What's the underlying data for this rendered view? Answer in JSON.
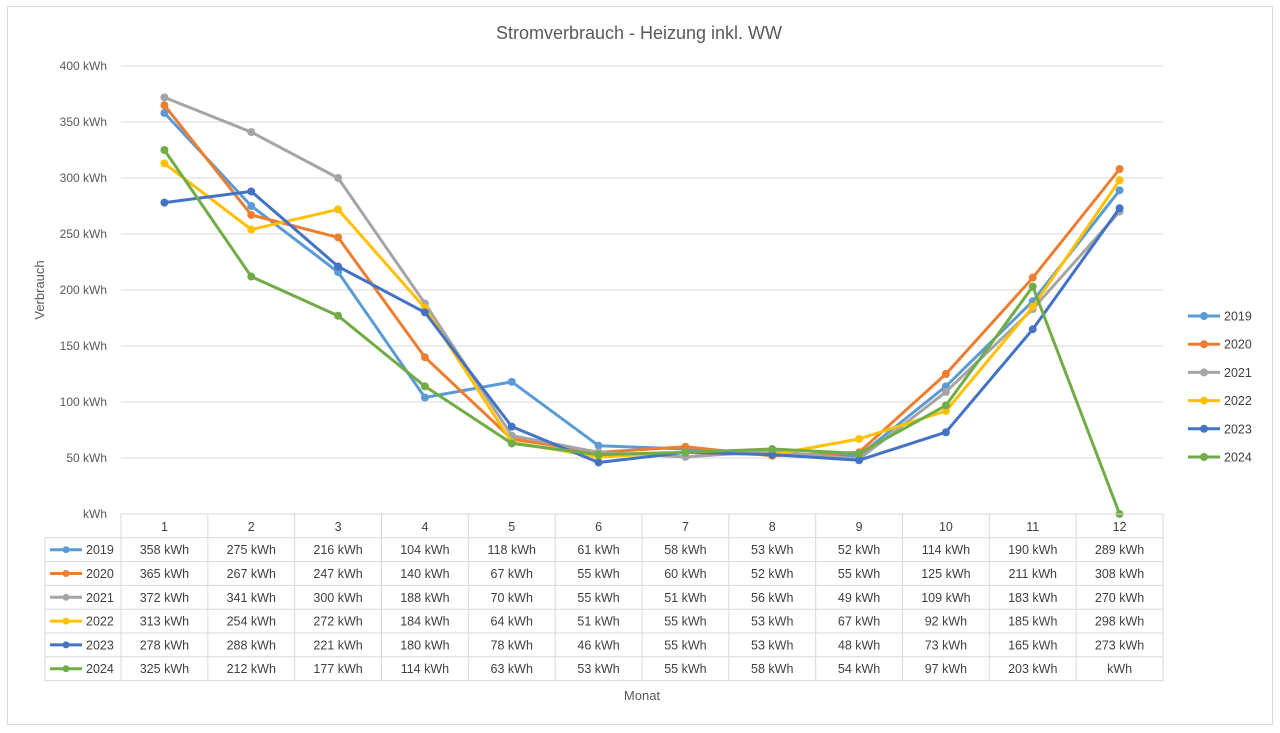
{
  "chart_data": {
    "type": "line",
    "title": "Stromverbrauch - Heizung inkl. WW",
    "xlabel": "Monat",
    "ylabel": "Verbrauch",
    "categories": [
      "1",
      "2",
      "3",
      "4",
      "5",
      "6",
      "7",
      "8",
      "9",
      "10",
      "11",
      "12"
    ],
    "ylim": [
      0,
      400
    ],
    "y_ticks": [
      {
        "value": 0,
        "label": "kWh"
      },
      {
        "value": 50,
        "label": "50 kWh"
      },
      {
        "value": 100,
        "label": "100 kWh"
      },
      {
        "value": 150,
        "label": "150 kWh"
      },
      {
        "value": 200,
        "label": "200 kWh"
      },
      {
        "value": 250,
        "label": "250 kWh"
      },
      {
        "value": 300,
        "label": "300 kWh"
      },
      {
        "value": 350,
        "label": "350 kWh"
      },
      {
        "value": 400,
        "label": "400 kWh"
      }
    ],
    "grid": true,
    "legend_position": "right",
    "data_table": true,
    "series": [
      {
        "name": "2019",
        "color": "#5b9bd5",
        "values": [
          358,
          275,
          216,
          104,
          118,
          61,
          58,
          53,
          52,
          114,
          190,
          289
        ],
        "labels": [
          "358 kWh",
          "275 kWh",
          "216 kWh",
          "104 kWh",
          "118 kWh",
          "61 kWh",
          "58 kWh",
          "53 kWh",
          "52 kWh",
          "114 kWh",
          "190 kWh",
          "289 kWh"
        ]
      },
      {
        "name": "2020",
        "color": "#ed7d31",
        "values": [
          365,
          267,
          247,
          140,
          67,
          55,
          60,
          52,
          55,
          125,
          211,
          308
        ],
        "labels": [
          "365 kWh",
          "267 kWh",
          "247 kWh",
          "140 kWh",
          "67 kWh",
          "55 kWh",
          "60 kWh",
          "52 kWh",
          "55 kWh",
          "125 kWh",
          "211 kWh",
          "308 kWh"
        ]
      },
      {
        "name": "2021",
        "color": "#a5a5a5",
        "values": [
          372,
          341,
          300,
          188,
          70,
          55,
          51,
          56,
          49,
          109,
          183,
          270
        ],
        "labels": [
          "372 kWh",
          "341 kWh",
          "300 kWh",
          "188 kWh",
          "70 kWh",
          "55 kWh",
          "51 kWh",
          "56 kWh",
          "49 kWh",
          "109 kWh",
          "183 kWh",
          "270 kWh"
        ]
      },
      {
        "name": "2022",
        "color": "#ffc000",
        "values": [
          313,
          254,
          272,
          184,
          64,
          51,
          55,
          53,
          67,
          92,
          185,
          298
        ],
        "labels": [
          "313 kWh",
          "254 kWh",
          "272 kWh",
          "184 kWh",
          "64 kWh",
          "51 kWh",
          "55 kWh",
          "53 kWh",
          "67 kWh",
          "92 kWh",
          "185 kWh",
          "298 kWh"
        ]
      },
      {
        "name": "2023",
        "color": "#4472c4",
        "values": [
          278,
          288,
          221,
          180,
          78,
          46,
          55,
          53,
          48,
          73,
          165,
          273
        ],
        "labels": [
          "278 kWh",
          "288 kWh",
          "221 kWh",
          "180 kWh",
          "78 kWh",
          "46 kWh",
          "55 kWh",
          "53 kWh",
          "48 kWh",
          "73 kWh",
          "165 kWh",
          "273 kWh"
        ]
      },
      {
        "name": "2024",
        "color": "#70ad47",
        "values": [
          325,
          212,
          177,
          114,
          63,
          53,
          55,
          58,
          54,
          97,
          203,
          0
        ],
        "labels": [
          "325 kWh",
          "212 kWh",
          "177 kWh",
          "114 kWh",
          "63 kWh",
          "53 kWh",
          "55 kWh",
          "58 kWh",
          "54 kWh",
          "97 kWh",
          "203 kWh",
          "kWh"
        ]
      }
    ]
  }
}
